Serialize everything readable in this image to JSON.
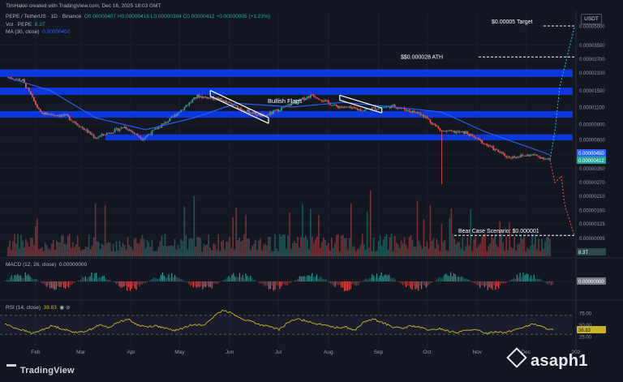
{
  "header": {
    "credit": "TimHakki created with TradingView.com, Dec 16, 2025 18:03 GMT",
    "symbol": "PEPE / TetherUS · 1D · Binance",
    "ohlc": {
      "o": "O0.00000407",
      "h": "H0.00000416",
      "l": "L0.00000394",
      "c": "C0.00000412",
      "chg": "+0.00000005 (+1.23%)"
    },
    "vol_label": "Vol · PEPE",
    "vol_value": "8.3T",
    "ma_label": "MA (30, close)",
    "ma_value": "0.00000450",
    "currency": "USDT"
  },
  "colors": {
    "background": "#131722",
    "up": "#26a69a",
    "down": "#ef5350",
    "zone": "#0c3ae6",
    "ma": "#2962ff",
    "rsi": "#c9b22a"
  },
  "chart_data": [
    {
      "type": "candlestick",
      "title": "PEPE / TetherUS · 1D · Binance",
      "scale": "log",
      "y_ticks": [
        "0.00005000",
        "0.00003500",
        "0.00002700",
        "0.00002100",
        "0.00001500",
        "0.00001100",
        "0.00000800",
        "0.00000600",
        "0.00000450",
        "0.00000350",
        "0.00000270",
        "0.00000210",
        "0.00000160",
        "0.00000125",
        "0.00000095",
        "0.00000073"
      ],
      "x_ticks": [
        "Feb",
        "Mar",
        "Apr",
        "May",
        "Jun",
        "Jul",
        "Aug",
        "Sep",
        "Oct",
        "Nov",
        "Dec",
        "202"
      ],
      "price_series": [
        {
          "date": "2025-01-15",
          "value": 1.92e-05
        },
        {
          "date": "2025-01-24",
          "value": 1.8e-05
        },
        {
          "date": "2025-02-04",
          "value": 9.8e-06
        },
        {
          "date": "2025-02-20",
          "value": 9.3e-06
        },
        {
          "date": "2025-03-10",
          "value": 6.2e-06
        },
        {
          "date": "2025-03-28",
          "value": 7.6e-06
        },
        {
          "date": "2025-04-08",
          "value": 6.1e-06
        },
        {
          "date": "2025-04-25",
          "value": 8.7e-06
        },
        {
          "date": "2025-05-12",
          "value": 1.35e-05
        },
        {
          "date": "2025-05-25",
          "value": 1.28e-05
        },
        {
          "date": "2025-06-10",
          "value": 1.04e-05
        },
        {
          "date": "2025-06-22",
          "value": 9.2e-06
        },
        {
          "date": "2025-07-10",
          "value": 1.18e-05
        },
        {
          "date": "2025-07-22",
          "value": 1.38e-05
        },
        {
          "date": "2025-08-05",
          "value": 1.12e-05
        },
        {
          "date": "2025-08-22",
          "value": 1.04e-05
        },
        {
          "date": "2025-09-10",
          "value": 1.12e-05
        },
        {
          "date": "2025-09-28",
          "value": 9.6e-06
        },
        {
          "date": "2025-10-10",
          "value": 7e-06
        },
        {
          "date": "2025-10-25",
          "value": 6.8e-06
        },
        {
          "date": "2025-11-05",
          "value": 5.6e-06
        },
        {
          "date": "2025-11-20",
          "value": 4.3e-06
        },
        {
          "date": "2025-12-05",
          "value": 4.5e-06
        },
        {
          "date": "2025-12-16",
          "value": 4.12e-06
        }
      ],
      "ma_series": [
        {
          "date": "2025-01-15",
          "value": 1.9e-05
        },
        {
          "date": "2025-02-10",
          "value": 1.5e-05
        },
        {
          "date": "2025-03-10",
          "value": 9e-06
        },
        {
          "date": "2025-04-10",
          "value": 7.2e-06
        },
        {
          "date": "2025-05-10",
          "value": 9e-06
        },
        {
          "date": "2025-06-05",
          "value": 1.18e-05
        },
        {
          "date": "2025-07-10",
          "value": 1.1e-05
        },
        {
          "date": "2025-08-10",
          "value": 1.2e-05
        },
        {
          "date": "2025-09-10",
          "value": 1.1e-05
        },
        {
          "date": "2025-10-10",
          "value": 1e-05
        },
        {
          "date": "2025-11-05",
          "value": 7e-06
        },
        {
          "date": "2025-12-16",
          "value": 4.5e-06
        }
      ],
      "oct10_wick_low": 2.6e-06,
      "zones": [
        {
          "low": 1.93e-05,
          "high": 2.22e-05
        },
        {
          "low": 1.38e-05,
          "high": 1.58e-05
        },
        {
          "low": 9e-06,
          "high": 1.02e-05
        },
        {
          "low": 5.9e-06,
          "high": 6.6e-06
        }
      ],
      "annotations": {
        "target_label": "$0.00005 Target",
        "target_value": 5e-05,
        "ath_label": "$$0.000028 ATH",
        "ath_value": 2.8e-05,
        "bear_label": "Bear Case Scenario: $0.000001",
        "bear_value": 1e-06,
        "pattern_label": "Bullish Flags"
      },
      "badges": {
        "ma_value": "0.00000450",
        "last_price": "0.00000412",
        "volume": "8.3T"
      }
    },
    {
      "type": "bar",
      "title": "MACD (12, 26, close)",
      "header_value": "0.00000000",
      "badge": "0.00000000"
    },
    {
      "type": "line",
      "title": "RSI (14, close)",
      "header_value": "38.83",
      "badge": "38.83",
      "y_ticks": [
        "75.00",
        "50.00",
        "25.00"
      ],
      "levels": [
        70,
        30
      ],
      "series": [
        52,
        44,
        38,
        32,
        40,
        48,
        42,
        36,
        34,
        40,
        50,
        44,
        56,
        62,
        50,
        46,
        48,
        42,
        38,
        44,
        52,
        48,
        66,
        80,
        76,
        62,
        58,
        50,
        46,
        40,
        56,
        62,
        58,
        52,
        50,
        44,
        46,
        38,
        56,
        62,
        54,
        46,
        42,
        48,
        44,
        38,
        42,
        36,
        34,
        40,
        38,
        32,
        36,
        34,
        40,
        46,
        52,
        44,
        38.83
      ]
    }
  ]
}
